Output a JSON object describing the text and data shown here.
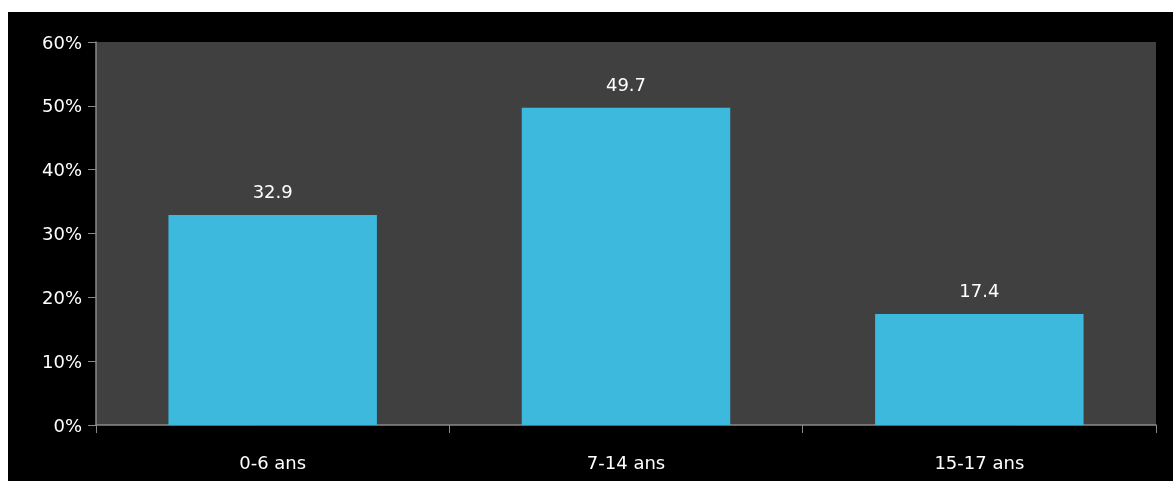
{
  "chart_data": {
    "type": "bar",
    "categories": [
      "0-6 ans",
      "7-14 ans",
      "15-17 ans"
    ],
    "values": [
      32.9,
      49.7,
      17.4
    ],
    "color": "#3cb9dc",
    "ylim": [
      0,
      60
    ],
    "yticks": [
      {
        "value": 0,
        "label": "0%"
      },
      {
        "value": 10,
        "label": "10%"
      },
      {
        "value": 20,
        "label": "20%"
      },
      {
        "value": 30,
        "label": "30%"
      },
      {
        "value": 40,
        "label": "40%"
      },
      {
        "value": 50,
        "label": "50%"
      },
      {
        "value": 60,
        "label": "60%"
      }
    ],
    "data_labels": true,
    "grid": false
  }
}
